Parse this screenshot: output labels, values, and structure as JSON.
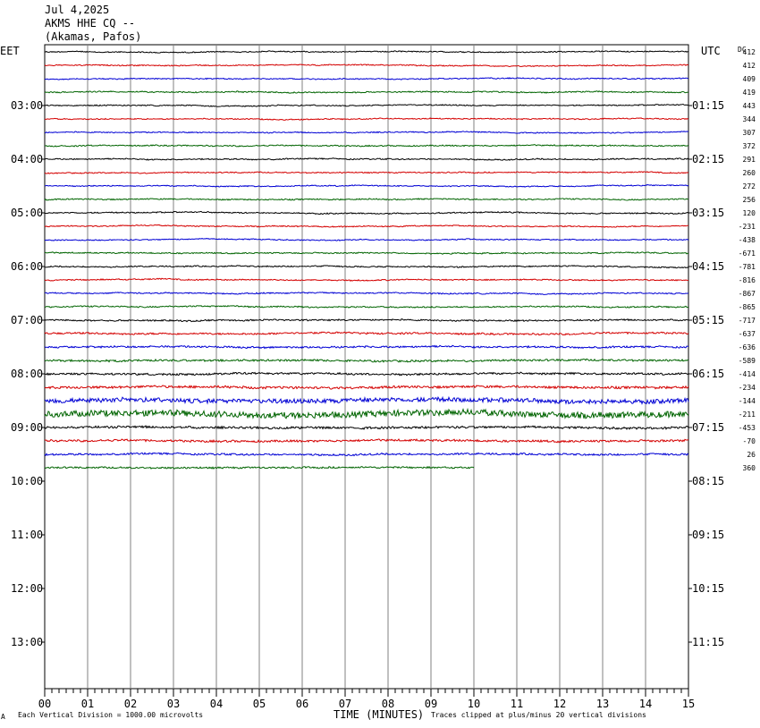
{
  "header": {
    "date": "Jul 4,2025",
    "station": "AKMS HHE CQ --",
    "location": "(Akamas, Pafos)"
  },
  "left_timezone": "EET",
  "right_timezone": "UTC",
  "dc_header": "DC",
  "left_time_labels": [
    "03:00",
    "04:00",
    "05:00",
    "06:00",
    "07:00",
    "08:00",
    "09:00",
    "10:00",
    "11:00",
    "12:00",
    "13:00"
  ],
  "right_time_labels": [
    "01:15",
    "02:15",
    "03:15",
    "04:15",
    "05:15",
    "06:15",
    "07:15",
    "08:15",
    "09:15",
    "10:15",
    "11:15"
  ],
  "x_tick_labels": [
    "00",
    "01",
    "02",
    "03",
    "04",
    "05",
    "06",
    "07",
    "08",
    "09",
    "10",
    "11",
    "12",
    "13",
    "14",
    "15"
  ],
  "x_axis_title": "TIME (MINUTES)",
  "footer": {
    "left_mark": "A",
    "scale_note": "Each Vertical Division = 1000.00 microvolts",
    "clip_note": "Traces clipped at plus/minus 20 vertical divisions"
  },
  "colors": {
    "trace_cycle": [
      "#000000",
      "#d40000",
      "#0000d4",
      "#006400"
    ],
    "grid": "#808080",
    "axis": "#000000"
  },
  "chart_data": {
    "type": "line",
    "description_type": "helicorder",
    "xlabel": "TIME (MINUTES)",
    "xlim": [
      0,
      15
    ],
    "minutes_per_line": 15,
    "traces": [
      {
        "dc": "412",
        "end_minute": 15,
        "amplitude": 0.7
      },
      {
        "dc": "412",
        "end_minute": 15,
        "amplitude": 0.7
      },
      {
        "dc": "409",
        "end_minute": 15,
        "amplitude": 0.7
      },
      {
        "dc": "419",
        "end_minute": 15,
        "amplitude": 0.8
      },
      {
        "dc": "443",
        "end_minute": 15,
        "amplitude": 0.7
      },
      {
        "dc": "344",
        "end_minute": 15,
        "amplitude": 0.7
      },
      {
        "dc": "307",
        "end_minute": 15,
        "amplitude": 0.7
      },
      {
        "dc": "372",
        "end_minute": 15,
        "amplitude": 0.8
      },
      {
        "dc": "291",
        "end_minute": 15,
        "amplitude": 0.8
      },
      {
        "dc": "260",
        "end_minute": 15,
        "amplitude": 0.7
      },
      {
        "dc": "272",
        "end_minute": 15,
        "amplitude": 0.7
      },
      {
        "dc": "256",
        "end_minute": 15,
        "amplitude": 0.8
      },
      {
        "dc": "120",
        "end_minute": 15,
        "amplitude": 0.8
      },
      {
        "dc": "-231",
        "end_minute": 15,
        "amplitude": 0.7
      },
      {
        "dc": "-438",
        "end_minute": 15,
        "amplitude": 0.7
      },
      {
        "dc": "-671",
        "end_minute": 15,
        "amplitude": 0.8
      },
      {
        "dc": "-781",
        "end_minute": 15,
        "amplitude": 0.8
      },
      {
        "dc": "-816",
        "end_minute": 15,
        "amplitude": 0.8
      },
      {
        "dc": "-867",
        "end_minute": 15,
        "amplitude": 0.8
      },
      {
        "dc": "-865",
        "end_minute": 15,
        "amplitude": 0.9
      },
      {
        "dc": "-717",
        "end_minute": 15,
        "amplitude": 1.0
      },
      {
        "dc": "-637",
        "end_minute": 15,
        "amplitude": 1.2
      },
      {
        "dc": "-636",
        "end_minute": 15,
        "amplitude": 1.2
      },
      {
        "dc": "-589",
        "end_minute": 15,
        "amplitude": 1.3
      },
      {
        "dc": "-414",
        "end_minute": 15,
        "amplitude": 1.3
      },
      {
        "dc": "-234",
        "end_minute": 15,
        "amplitude": 1.6
      },
      {
        "dc": "-144",
        "end_minute": 15,
        "amplitude": 3.0
      },
      {
        "dc": "-211",
        "end_minute": 15,
        "amplitude": 4.2
      },
      {
        "dc": "-453",
        "end_minute": 15,
        "amplitude": 1.5
      },
      {
        "dc": "-70",
        "end_minute": 15,
        "amplitude": 1.4
      },
      {
        "dc": "26",
        "end_minute": 15,
        "amplitude": 1.2
      },
      {
        "dc": "360",
        "end_minute": 10,
        "amplitude": 1.1
      }
    ]
  }
}
